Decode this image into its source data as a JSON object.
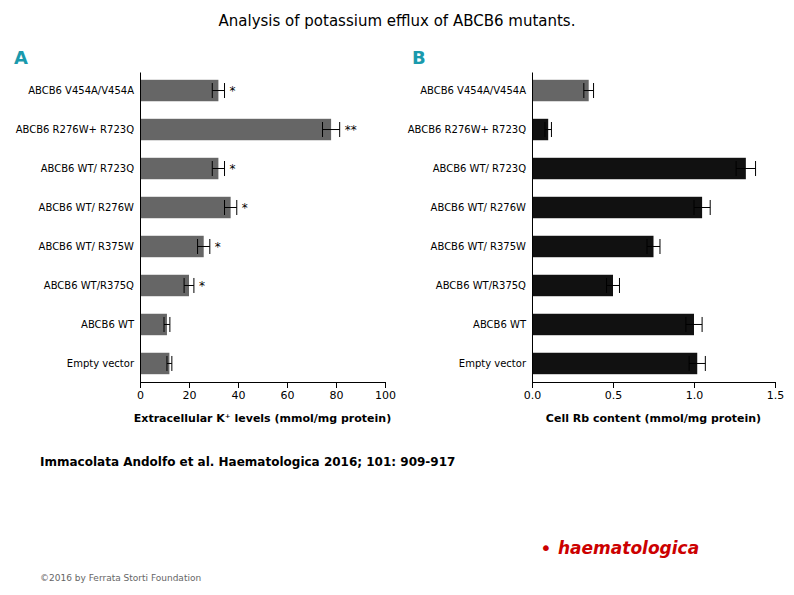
{
  "chart_data": [
    {
      "type": "bar",
      "orientation": "horizontal",
      "title": "Analysis of potassium efflux of ABCB6 mutants.",
      "panel_label": "A",
      "categories": [
        "ABCB6 V454A/V454A",
        "ABCB6 R276W+ R723Q",
        "ABCB6 WT/ R723Q",
        "ABCB6  WT/ R276W",
        "ABCB6  WT/ R375W",
        "ABCB6 WT/R375Q",
        "ABCB6  WT",
        "Empty vector"
      ],
      "values": [
        32,
        78,
        32,
        37,
        26,
        20,
        11,
        12
      ],
      "errors": [
        2.5,
        3.5,
        2.5,
        2.5,
        2.5,
        2.0,
        1.2,
        1.0
      ],
      "significance": [
        "*",
        "**",
        "*",
        "*",
        "*",
        "*",
        null,
        null
      ],
      "color": "#666666",
      "xlim": [
        0,
        100
      ],
      "xticks": [
        0,
        20,
        40,
        60,
        80,
        100
      ],
      "xlabel": "Extracellular K⁺ levels (mmol/mg protein)",
      "annotations": [
        "Immacolata Andolfo et al. Haematologica 2016; 101: 909-917",
        "©2016 by Ferrata Storti Foundation",
        "•",
        "haematologica"
      ]
    },
    {
      "type": "bar",
      "orientation": "horizontal",
      "panel_label": "B",
      "categories": [
        "ABCB6 V454A/V454A",
        "ABCB6 R276W+ R723Q",
        "ABCB6 WT/ R723Q",
        "ABCB6  WT/ R276W",
        "ABCB6  WT/ R375W",
        "ABCB6 WT/R375Q",
        "ABCB6  WT",
        "Empty vector"
      ],
      "values": [
        0.35,
        0.1,
        1.32,
        1.05,
        0.75,
        0.5,
        1.0,
        1.02
      ],
      "errors": [
        0.03,
        0.02,
        0.06,
        0.05,
        0.04,
        0.04,
        0.05,
        0.05
      ],
      "colors": [
        "#666666",
        "#111111",
        "#111111",
        "#111111",
        "#111111",
        "#111111",
        "#111111",
        "#111111"
      ],
      "xlim": [
        0,
        1.5
      ],
      "xticks": [
        {
          "value": 0,
          "label": "0.0"
        },
        0.5,
        {
          "value": 1.0,
          "label": "1.0"
        },
        {
          "value": 1.5,
          "label": "1.5"
        }
      ],
      "xlabel": "Cell Rb content (mmol/mg protein)"
    }
  ]
}
